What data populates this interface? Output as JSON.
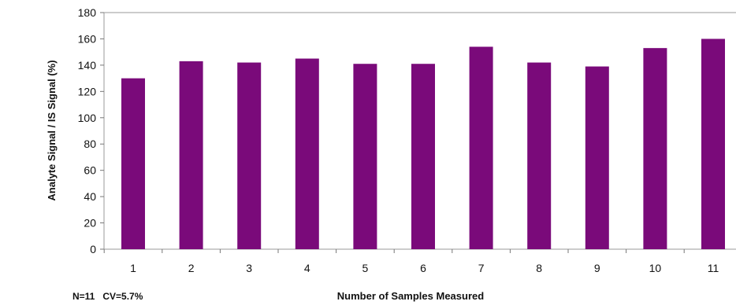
{
  "chart_data": {
    "type": "bar",
    "title": "",
    "xlabel": "Number of Samples Measured",
    "ylabel": "Analyte Signal / IS Signal (%)",
    "categories": [
      "1",
      "2",
      "3",
      "4",
      "5",
      "6",
      "7",
      "8",
      "9",
      "10",
      "11"
    ],
    "values": [
      130,
      143,
      142,
      145,
      141,
      141,
      154,
      142,
      139,
      153,
      160
    ],
    "ylim": [
      0,
      180
    ],
    "yticks": [
      "0",
      "20",
      "40",
      "60",
      "80",
      "100",
      "120",
      "140",
      "160",
      "180"
    ],
    "grid": false,
    "legend": "none",
    "bar_color": "#7a0a7a",
    "annotation": "N=11   CV=5.7%"
  }
}
